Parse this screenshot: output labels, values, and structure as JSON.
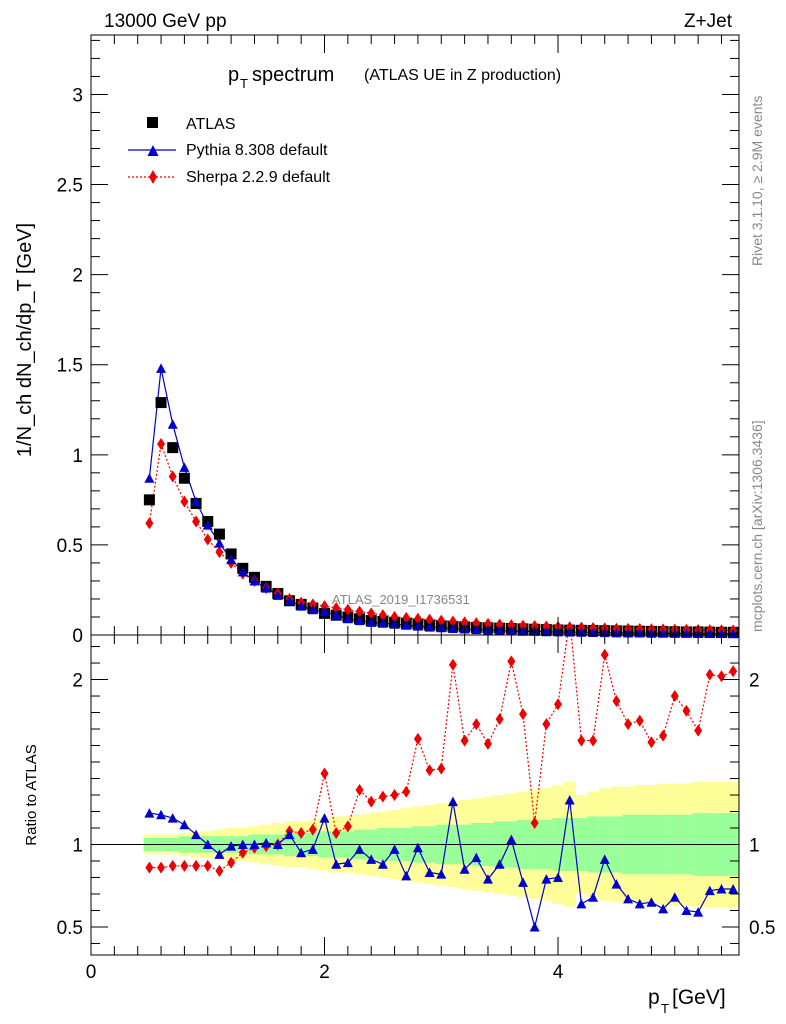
{
  "header": {
    "energy_label": "13000 GeV pp",
    "process_label": "Z+Jet"
  },
  "side_labels": {
    "rivet": "Rivet 3.1.10, ≥ 2.9M events",
    "mcplots": "mcplots.cern.ch [arXiv:1306.3436]"
  },
  "watermark": "ATLAS_2019_I1736531",
  "colors": {
    "atlas": "#000000",
    "pythia": "#0000cc",
    "sherpa": "#ee0000",
    "band_inner": "#99ff99",
    "band_outer": "#ffff99"
  },
  "chart_data": [
    {
      "type": "scatter",
      "title": "p_T spectrum",
      "title_main": "p",
      "title_sub": "T",
      "title_rest": " spectrum",
      "title_note": "(ATLAS UE in Z production)",
      "ylabel": "1/N_ch dN_ch/dp_T [GeV]",
      "xlim": [
        0,
        5.55
      ],
      "ylim": [
        0,
        3.33
      ],
      "yticks": [
        0,
        0.5,
        1,
        1.5,
        2,
        2.5,
        3
      ],
      "ytick_labels": [
        "0",
        "0.5",
        "1",
        "1.5",
        "2",
        "2.5",
        "3"
      ],
      "legend_position": "top-left",
      "x": [
        0.5,
        0.6,
        0.7,
        0.8,
        0.9,
        1.0,
        1.1,
        1.2,
        1.3,
        1.4,
        1.5,
        1.6,
        1.7,
        1.8,
        1.9,
        2.0,
        2.1,
        2.2,
        2.3,
        2.4,
        2.5,
        2.6,
        2.7,
        2.8,
        2.9,
        3.0,
        3.1,
        3.2,
        3.3,
        3.4,
        3.5,
        3.6,
        3.7,
        3.8,
        3.9,
        4.0,
        4.1,
        4.2,
        4.3,
        4.4,
        4.5,
        4.6,
        4.7,
        4.8,
        4.9,
        5.0,
        5.1,
        5.2,
        5.3,
        5.4,
        5.5
      ],
      "series": [
        {
          "name": "ATLAS",
          "marker": "square",
          "values": [
            0.75,
            1.29,
            1.04,
            0.87,
            0.73,
            0.63,
            0.56,
            0.45,
            0.37,
            0.32,
            0.27,
            0.23,
            0.19,
            0.17,
            0.15,
            0.12,
            0.11,
            0.1,
            0.09,
            0.08,
            0.075,
            0.07,
            0.065,
            0.06,
            0.055,
            0.05,
            0.048,
            0.045,
            0.042,
            0.04,
            0.038,
            0.036,
            0.034,
            0.032,
            0.03,
            0.028,
            0.027,
            0.026,
            0.025,
            0.024,
            0.023,
            0.022,
            0.021,
            0.02,
            0.019,
            0.018,
            0.017,
            0.017,
            0.016,
            0.015,
            0.015
          ]
        },
        {
          "name": "Pythia 8.308 default",
          "marker": "triangle",
          "values": [
            0.87,
            1.48,
            1.17,
            0.93,
            0.74,
            0.61,
            0.51,
            0.42,
            0.35,
            0.3,
            0.26,
            0.22,
            0.19,
            0.16,
            0.14,
            0.13,
            0.11,
            0.09,
            0.08,
            0.07,
            0.065,
            0.06,
            0.054,
            0.049,
            0.044,
            0.04,
            0.036,
            0.033,
            0.03,
            0.027,
            0.025,
            0.023,
            0.021,
            0.02,
            0.018,
            0.017,
            0.016,
            0.015,
            0.014,
            0.013,
            0.012,
            0.011,
            0.011,
            0.01,
            0.01,
            0.009,
            0.009,
            0.008,
            0.008,
            0.008,
            0.007
          ]
        },
        {
          "name": "Sherpa 2.2.9 default",
          "marker": "diamond",
          "values": [
            0.62,
            1.06,
            0.88,
            0.74,
            0.63,
            0.53,
            0.46,
            0.4,
            0.34,
            0.3,
            0.26,
            0.23,
            0.2,
            0.18,
            0.17,
            0.16,
            0.15,
            0.14,
            0.13,
            0.12,
            0.11,
            0.1,
            0.095,
            0.09,
            0.085,
            0.08,
            0.075,
            0.07,
            0.066,
            0.062,
            0.058,
            0.055,
            0.052,
            0.05,
            0.047,
            0.045,
            0.043,
            0.041,
            0.039,
            0.037,
            0.035,
            0.034,
            0.033,
            0.032,
            0.031,
            0.03,
            0.029,
            0.028,
            0.027,
            0.026,
            0.025
          ]
        }
      ]
    },
    {
      "type": "line",
      "ylabel": "Ratio to ATLAS",
      "xlabel": "p_T [GeV]",
      "xlabel_main": "p",
      "xlabel_sub": "T",
      "xlabel_unit": " [GeV]",
      "xlim": [
        0,
        5.55
      ],
      "ylim": [
        0.33,
        2.27
      ],
      "xticks": [
        0,
        2,
        4
      ],
      "xtick_labels": [
        "0",
        "2",
        "4"
      ],
      "yticks": [
        0.5,
        1,
        2
      ],
      "ytick_labels": [
        "0.5",
        "1",
        "2"
      ],
      "reference_line": 1,
      "x": [
        0.5,
        0.6,
        0.7,
        0.8,
        0.9,
        1.0,
        1.1,
        1.2,
        1.3,
        1.4,
        1.5,
        1.6,
        1.7,
        1.8,
        1.9,
        2.0,
        2.1,
        2.2,
        2.3,
        2.4,
        2.5,
        2.6,
        2.7,
        2.8,
        2.9,
        3.0,
        3.1,
        3.2,
        3.3,
        3.4,
        3.5,
        3.6,
        3.7,
        3.8,
        3.9,
        4.0,
        4.1,
        4.2,
        4.3,
        4.4,
        4.5,
        4.6,
        4.7,
        4.8,
        4.9,
        5.0,
        5.1,
        5.2,
        5.3,
        5.4,
        5.5
      ],
      "band_inner": [
        0.04,
        0.04,
        0.04,
        0.05,
        0.05,
        0.05,
        0.05,
        0.05,
        0.05,
        0.06,
        0.06,
        0.06,
        0.07,
        0.07,
        0.07,
        0.08,
        0.08,
        0.08,
        0.09,
        0.09,
        0.1,
        0.1,
        0.1,
        0.11,
        0.11,
        0.12,
        0.12,
        0.12,
        0.13,
        0.13,
        0.14,
        0.14,
        0.15,
        0.15,
        0.15,
        0.16,
        0.16,
        0.16,
        0.17,
        0.17,
        0.17,
        0.18,
        0.18,
        0.18,
        0.18,
        0.18,
        0.18,
        0.19,
        0.19,
        0.19,
        0.19
      ],
      "band_outer": [
        0.06,
        0.06,
        0.06,
        0.07,
        0.08,
        0.08,
        0.09,
        0.1,
        0.1,
        0.11,
        0.12,
        0.13,
        0.14,
        0.14,
        0.15,
        0.16,
        0.17,
        0.17,
        0.18,
        0.19,
        0.2,
        0.21,
        0.22,
        0.23,
        0.24,
        0.25,
        0.26,
        0.27,
        0.28,
        0.29,
        0.3,
        0.31,
        0.32,
        0.33,
        0.34,
        0.36,
        0.38,
        0.3,
        0.32,
        0.34,
        0.35,
        0.35,
        0.36,
        0.36,
        0.37,
        0.37,
        0.37,
        0.38,
        0.38,
        0.38,
        0.38
      ],
      "series": [
        {
          "name": "Pythia 8.308 default",
          "values": [
            1.19,
            1.18,
            1.16,
            1.12,
            1.06,
            1.0,
            0.94,
            0.99,
            1.0,
            1.0,
            1.01,
            1.0,
            1.06,
            0.95,
            0.97,
            1.16,
            0.88,
            0.89,
            0.97,
            0.91,
            0.88,
            0.97,
            0.81,
            0.98,
            0.83,
            0.82,
            1.26,
            0.85,
            0.92,
            0.79,
            0.88,
            1.03,
            0.77,
            0.5,
            0.79,
            0.8,
            1.27,
            0.64,
            0.68,
            0.91,
            0.76,
            0.67,
            0.64,
            0.65,
            0.61,
            0.68,
            0.6,
            0.59,
            0.72,
            0.73,
            0.73
          ]
        },
        {
          "name": "Sherpa 2.2.9 default",
          "values": [
            0.86,
            0.86,
            0.87,
            0.87,
            0.87,
            0.87,
            0.84,
            0.89,
            0.95,
            0.98,
            0.99,
            1.0,
            1.08,
            1.07,
            1.09,
            1.43,
            1.07,
            1.11,
            1.33,
            1.26,
            1.29,
            1.3,
            1.32,
            1.64,
            1.45,
            1.46,
            2.09,
            1.63,
            1.73,
            1.61,
            1.76,
            2.11,
            1.79,
            1.13,
            1.73,
            1.85,
            2.37,
            1.63,
            1.63,
            2.15,
            1.87,
            1.73,
            1.75,
            1.62,
            1.66,
            1.9,
            1.81,
            1.69,
            2.03,
            2.02,
            2.05
          ]
        }
      ]
    }
  ]
}
